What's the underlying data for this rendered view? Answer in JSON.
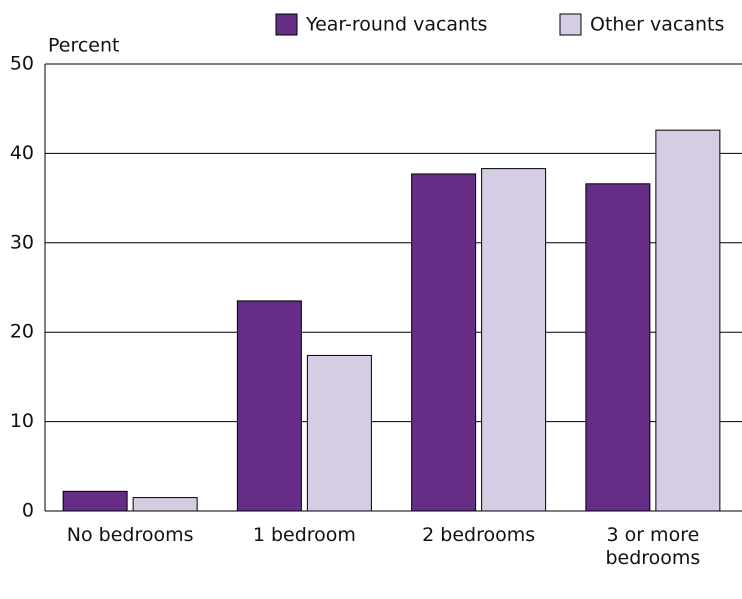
{
  "chart_data": {
    "type": "bar",
    "y_label": "Percent",
    "categories": [
      "No bedrooms",
      "1 bedroom",
      "2 bedrooms",
      "3 or more bedrooms"
    ],
    "series": [
      {
        "name": "Year-round vacants",
        "color": "#652d86",
        "values": [
          2.2,
          23.5,
          37.7,
          36.6
        ]
      },
      {
        "name": "Other vacants",
        "color": "#d6cce3",
        "values": [
          1.5,
          17.4,
          38.3,
          42.6
        ]
      }
    ],
    "ylim": [
      0,
      50
    ],
    "yticks": [
      0,
      10,
      20,
      30,
      40,
      50
    ],
    "grid": true,
    "legend": "top-right"
  }
}
